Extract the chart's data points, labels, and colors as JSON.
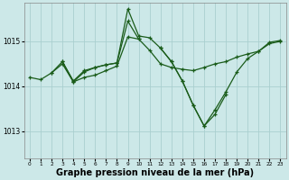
{
  "background_color": "#cce8e8",
  "grid_color": "#aacfcf",
  "line_color": "#1a5c1a",
  "xlabel": "Graphe pression niveau de la mer (hPa)",
  "xlabel_fontsize": 7,
  "yticks": [
    1013,
    1014,
    1015
  ],
  "ylim": [
    1012.4,
    1015.85
  ],
  "xlim": [
    -0.5,
    23.5
  ],
  "xticks": [
    0,
    1,
    2,
    3,
    4,
    5,
    6,
    7,
    8,
    9,
    10,
    11,
    12,
    13,
    14,
    15,
    16,
    17,
    18,
    19,
    20,
    21,
    22,
    23
  ],
  "series": [
    {
      "x": [
        0,
        1,
        2,
        3,
        4,
        5,
        6,
        7,
        8,
        9,
        10,
        11,
        12,
        13,
        14,
        15,
        16,
        17,
        18,
        19,
        20,
        21,
        22,
        23
      ],
      "y": [
        1014.2,
        1014.15,
        1014.3,
        1014.5,
        1014.1,
        1014.2,
        1014.25,
        1014.35,
        1014.45,
        1015.1,
        1015.05,
        1014.8,
        1014.5,
        1014.42,
        1014.38,
        1014.35,
        1014.42,
        1014.5,
        1014.55,
        1014.65,
        1014.72,
        1014.78,
        1014.95,
        1015.0
      ]
    },
    {
      "x": [
        2,
        3,
        4,
        5,
        6,
        7,
        8,
        9,
        10
      ],
      "y": [
        1014.3,
        1014.55,
        1014.12,
        1014.35,
        1014.42,
        1014.48,
        1014.52,
        1015.45,
        1015.05
      ]
    },
    {
      "x": [
        3,
        4,
        5,
        6,
        7,
        8,
        9,
        10,
        11,
        12,
        13,
        14,
        15,
        16,
        17,
        18
      ],
      "y": [
        1014.55,
        1014.1,
        1014.32,
        1014.42,
        1014.48,
        1014.52,
        1015.72,
        1015.12,
        1015.08,
        1014.85,
        1014.55,
        1014.12,
        1013.58,
        1013.12,
        1013.38,
        1013.82
      ]
    },
    {
      "x": [
        12,
        13,
        14,
        15,
        16,
        17,
        18,
        19,
        20,
        21,
        22,
        23
      ],
      "y": [
        1014.85,
        1014.55,
        1014.12,
        1013.58,
        1013.12,
        1013.48,
        1013.88,
        1014.32,
        1014.62,
        1014.78,
        1014.98,
        1015.02
      ]
    }
  ]
}
